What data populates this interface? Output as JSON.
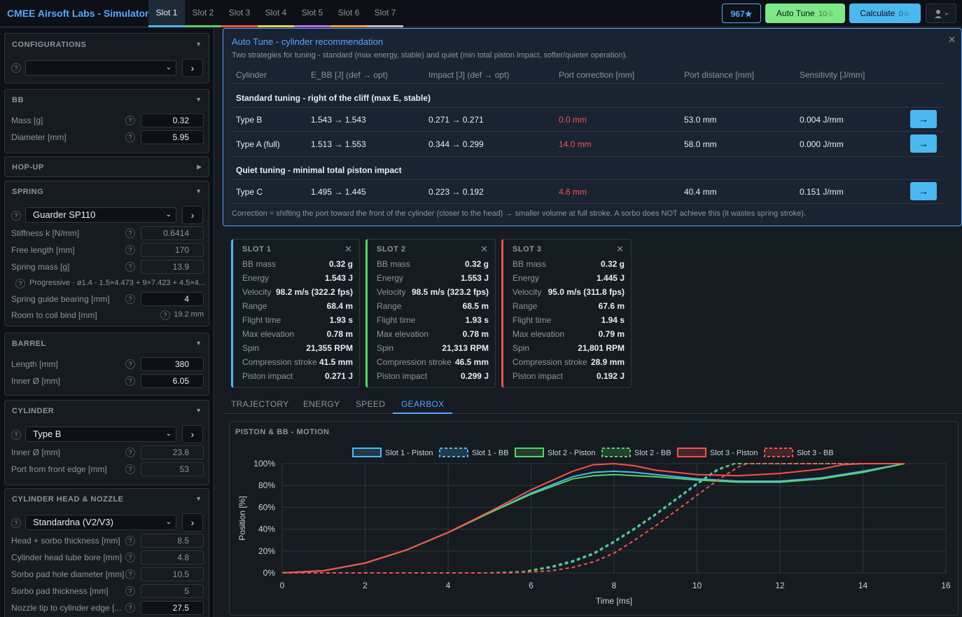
{
  "app": {
    "title": "CMEE Airsoft Labs - Simulator"
  },
  "slots": [
    {
      "label": "Slot 1",
      "color": "#4cb8f0",
      "active": true
    },
    {
      "label": "Slot 2",
      "color": "#56d364"
    },
    {
      "label": "Slot 3",
      "color": "#f85149"
    },
    {
      "label": "Slot 4",
      "color": "#e3d74a"
    },
    {
      "label": "Slot 5",
      "color": "#bc6ee8"
    },
    {
      "label": "Slot 6",
      "color": "#ff9f43"
    },
    {
      "label": "Slot 7",
      "color": "#c0c0c0"
    }
  ],
  "toolbar": {
    "stars": "967★",
    "autotune": "Auto Tune",
    "autotune_count": "10☆",
    "calculate": "Calculate",
    "calculate_count": "0☆",
    "user_icon": "user-icon"
  },
  "sidebar": {
    "configurations": {
      "title": "CONFIGURATIONS",
      "selected": ""
    },
    "bb": {
      "title": "BB",
      "mass_label": "Mass [g]",
      "mass": "0.32",
      "diameter_label": "Diameter [mm]",
      "diameter": "5.95"
    },
    "hopup": {
      "title": "HOP-UP"
    },
    "spring": {
      "title": "SPRING",
      "selected": "Guarder SP110",
      "stiffness_label": "Stiffness k [N/mm]",
      "stiffness": "0.6414",
      "free_length_label": "Free length [mm]",
      "free_length": "170",
      "mass_label": "Spring mass [g]",
      "mass": "13.9",
      "progressive": "Progressive · ø1.4 · 1.5×4.473 + 9×7.423 + 4.5×4...",
      "guide_label": "Spring guide bearing [mm]",
      "guide": "4",
      "coil_bind_label": "Room to coil bind [mm]",
      "coil_bind": "19.2 mm"
    },
    "barrel": {
      "title": "BARREL",
      "length_label": "Length [mm]",
      "length": "380",
      "inner_label": "Inner Ø [mm]",
      "inner": "6.05"
    },
    "cylinder": {
      "title": "CYLINDER",
      "selected": "Type B",
      "inner_label": "Inner Ø [mm]",
      "inner": "23.8",
      "port_label": "Port from front edge [mm]",
      "port": "53"
    },
    "head": {
      "title": "CYLINDER HEAD & NOZZLE",
      "selected": "Standardna (V2/V3)",
      "sorbo_label": "Head + sorbo thickness [mm]",
      "sorbo": "8.5",
      "bore_label": "Cylinder head tube bore [mm]",
      "bore": "4.8",
      "hole_label": "Sorbo pad hole diameter [mm]",
      "hole": "10.5",
      "pad_label": "Sorbo pad thickness [mm]",
      "pad": "5",
      "nozzle_label": "Nozzle tip to cylinder edge [...",
      "nozzle": "27.5"
    }
  },
  "autotune": {
    "title": "Auto Tune - cylinder recommendation",
    "desc": "Two strategies for tuning - standard (max energy, stable) and quiet (min total piston impact, softer/quieter operation).",
    "headers": [
      "Cylinder",
      "E_BB [J] (def → opt)",
      "Impact [J] (def → opt)",
      "Port correction [mm]",
      "Port distance [mm]",
      "Sensitivity [J/mm]"
    ],
    "section_standard": "Standard tuning - right of the cliff (max E, stable)",
    "section_quiet": "Quiet tuning - minimal total piston impact",
    "rows": [
      {
        "cyl": "Type B",
        "ebb": "1.543 → 1.543",
        "imp": "0.271 → 0.271",
        "corr": "0.0 mm",
        "dist": "53.0 mm",
        "sens": "0.004 J/mm",
        "go": "→"
      },
      {
        "cyl": "Type A (full)",
        "ebb": "1.513 → 1.553",
        "imp": "0.344 → 0.299",
        "corr": "14.0 mm",
        "dist": "58.0 mm",
        "sens": "0.000 J/mm",
        "go": "→"
      },
      {
        "cyl": "Type C",
        "ebb": "1.495 → 1.445",
        "imp": "0.223 → 0.192",
        "corr": "4.6 mm",
        "dist": "40.4 mm",
        "sens": "0.151 J/mm",
        "go": "→"
      }
    ],
    "note": "Correction = shifting the port toward the front of the cylinder (closer to the head) → smaller volume at full stroke. A sorbo does NOT achieve this (it wastes spring stroke)."
  },
  "results": {
    "labels": [
      "BB mass",
      "Energy",
      "Velocity",
      "Range",
      "Flight time",
      "Max elevation",
      "Spin",
      "Compression stroke",
      "Piston impact"
    ],
    "cards": [
      {
        "title": "SLOT 1",
        "color": "#4cb8f0",
        "values": [
          "0.32 g",
          "1.543 J",
          "98.2 m/s (322.2 fps)",
          "68.4 m",
          "1.93 s",
          "0.78 m",
          "21,355 RPM",
          "41.5 mm",
          "0.271 J"
        ]
      },
      {
        "title": "SLOT 2",
        "color": "#56d364",
        "values": [
          "0.32 g",
          "1.553 J",
          "98.5 m/s (323.2 fps)",
          "68.5 m",
          "1.93 s",
          "0.78 m",
          "21,313 RPM",
          "46.5 mm",
          "0.299 J"
        ]
      },
      {
        "title": "SLOT 3",
        "color": "#f85149",
        "values": [
          "0.32 g",
          "1.445 J",
          "95.0 m/s (311.8 fps)",
          "67.6 m",
          "1.94 s",
          "0.79 m",
          "21,801 RPM",
          "28.9 mm",
          "0.192 J"
        ]
      }
    ]
  },
  "tabs": [
    "TRAJECTORY",
    "ENERGY",
    "SPEED",
    "GEARBOX"
  ],
  "active_tab": "GEARBOX",
  "chart_data": {
    "type": "line",
    "title": "PISTON & BB - MOTION",
    "xlabel": "Time [ms]",
    "ylabel": "Position [%]",
    "xlim": [
      0,
      16
    ],
    "ylim": [
      0,
      100
    ],
    "xticks": [
      "0",
      "2",
      "4",
      "6",
      "8",
      "10",
      "12",
      "14",
      "16"
    ],
    "yticks": [
      "0%",
      "20%",
      "40%",
      "60%",
      "80%",
      "100%"
    ],
    "legend": "top",
    "grid": true,
    "series": [
      {
        "name": "Slot 1 - Piston",
        "color": "#4cb8f0",
        "dashed": false,
        "points": [
          [
            0,
            0
          ],
          [
            1,
            2
          ],
          [
            2,
            9
          ],
          [
            3,
            21
          ],
          [
            4,
            37
          ],
          [
            5,
            55
          ],
          [
            6,
            73
          ],
          [
            7,
            88
          ],
          [
            7.5,
            92
          ],
          [
            8,
            93
          ],
          [
            8.5,
            92
          ],
          [
            9,
            90
          ],
          [
            10,
            86
          ],
          [
            11,
            84
          ],
          [
            12,
            84
          ],
          [
            13,
            87
          ],
          [
            14,
            93
          ],
          [
            15,
            100
          ]
        ]
      },
      {
        "name": "Slot 1 - BB",
        "color": "#4cb8f0",
        "dashed": true,
        "points": [
          [
            0,
            0
          ],
          [
            5,
            0
          ],
          [
            5.8,
            1
          ],
          [
            6.5,
            5
          ],
          [
            7,
            10
          ],
          [
            7.5,
            17
          ],
          [
            8,
            28
          ],
          [
            8.5,
            40
          ],
          [
            9,
            53
          ],
          [
            9.5,
            67
          ],
          [
            10,
            81
          ],
          [
            10.5,
            94
          ],
          [
            10.9,
            100
          ],
          [
            15,
            100
          ]
        ]
      },
      {
        "name": "Slot 2 - Piston",
        "color": "#56d364",
        "dashed": false,
        "points": [
          [
            0,
            0
          ],
          [
            1,
            2
          ],
          [
            2,
            9
          ],
          [
            3,
            21
          ],
          [
            4,
            37
          ],
          [
            5,
            55
          ],
          [
            6,
            72
          ],
          [
            7,
            86
          ],
          [
            7.5,
            89
          ],
          [
            8,
            90
          ],
          [
            8.5,
            89
          ],
          [
            9,
            88
          ],
          [
            10,
            85
          ],
          [
            11,
            83
          ],
          [
            12,
            83
          ],
          [
            13,
            86
          ],
          [
            14,
            92
          ],
          [
            15,
            100
          ]
        ]
      },
      {
        "name": "Slot 2 - BB",
        "color": "#56d364",
        "dashed": true,
        "points": [
          [
            0,
            0
          ],
          [
            5,
            0
          ],
          [
            5.8,
            1
          ],
          [
            6.5,
            6
          ],
          [
            7,
            11
          ],
          [
            7.5,
            18
          ],
          [
            8,
            29
          ],
          [
            8.5,
            41
          ],
          [
            9,
            54
          ],
          [
            9.5,
            68
          ],
          [
            10,
            82
          ],
          [
            10.5,
            95
          ],
          [
            10.9,
            100
          ],
          [
            15,
            100
          ]
        ]
      },
      {
        "name": "Slot 3 - Piston",
        "color": "#f85149",
        "dashed": false,
        "points": [
          [
            0,
            0
          ],
          [
            1,
            2
          ],
          [
            2,
            9
          ],
          [
            3,
            21
          ],
          [
            4,
            37
          ],
          [
            5,
            56
          ],
          [
            6,
            76
          ],
          [
            7,
            93
          ],
          [
            7.5,
            99
          ],
          [
            8,
            100
          ],
          [
            8.5,
            98
          ],
          [
            9,
            94
          ],
          [
            10,
            90
          ],
          [
            11,
            89
          ],
          [
            12,
            91
          ],
          [
            13,
            95
          ],
          [
            13.5,
            99
          ],
          [
            14,
            100
          ],
          [
            15,
            100
          ]
        ]
      },
      {
        "name": "Slot 3 - BB",
        "color": "#f85149",
        "dashed": true,
        "points": [
          [
            0,
            0
          ],
          [
            5.5,
            0
          ],
          [
            6.5,
            2
          ],
          [
            7,
            5
          ],
          [
            7.5,
            10
          ],
          [
            8,
            18
          ],
          [
            8.5,
            30
          ],
          [
            9,
            43
          ],
          [
            9.5,
            57
          ],
          [
            10,
            71
          ],
          [
            10.5,
            85
          ],
          [
            11,
            97
          ],
          [
            11.2,
            100
          ],
          [
            15,
            100
          ]
        ]
      }
    ]
  }
}
